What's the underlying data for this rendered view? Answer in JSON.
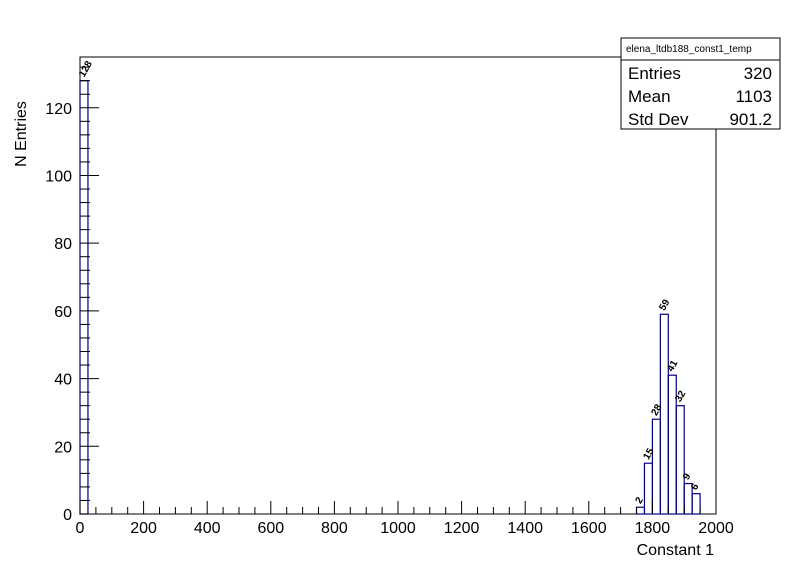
{
  "chart_data": {
    "type": "bar",
    "histogram_name": "elena_ltdb188_const1_temp",
    "xlabel": "Constant 1",
    "ylabel": "N Entries",
    "xlim": [
      0,
      2000
    ],
    "ylim": [
      0,
      135
    ],
    "x_ticks": [
      0,
      200,
      400,
      600,
      800,
      1000,
      1200,
      1400,
      1600,
      1800,
      2000
    ],
    "y_ticks": [
      0,
      20,
      40,
      60,
      80,
      100,
      120
    ],
    "bin_width": 25,
    "bins": [
      {
        "x0": 0,
        "value": 128,
        "label": "128"
      },
      {
        "x0": 1750,
        "value": 2,
        "label": "2"
      },
      {
        "x0": 1775,
        "value": 15,
        "label": "15"
      },
      {
        "x0": 1800,
        "value": 28,
        "label": "28"
      },
      {
        "x0": 1825,
        "value": 59,
        "label": "59"
      },
      {
        "x0": 1850,
        "value": 41,
        "label": "41"
      },
      {
        "x0": 1875,
        "value": 32,
        "label": "32"
      },
      {
        "x0": 1900,
        "value": 9,
        "label": "9"
      },
      {
        "x0": 1925,
        "value": 6,
        "label": "6"
      }
    ],
    "legend": "top-right",
    "grid": false,
    "line_color": "#000080"
  },
  "stats": {
    "title": "elena_ltdb188_const1_temp",
    "rows": [
      {
        "label": "Entries",
        "value": "320"
      },
      {
        "label": "Mean",
        "value": "1103"
      },
      {
        "label": "Std Dev",
        "value": "901.2"
      }
    ]
  }
}
